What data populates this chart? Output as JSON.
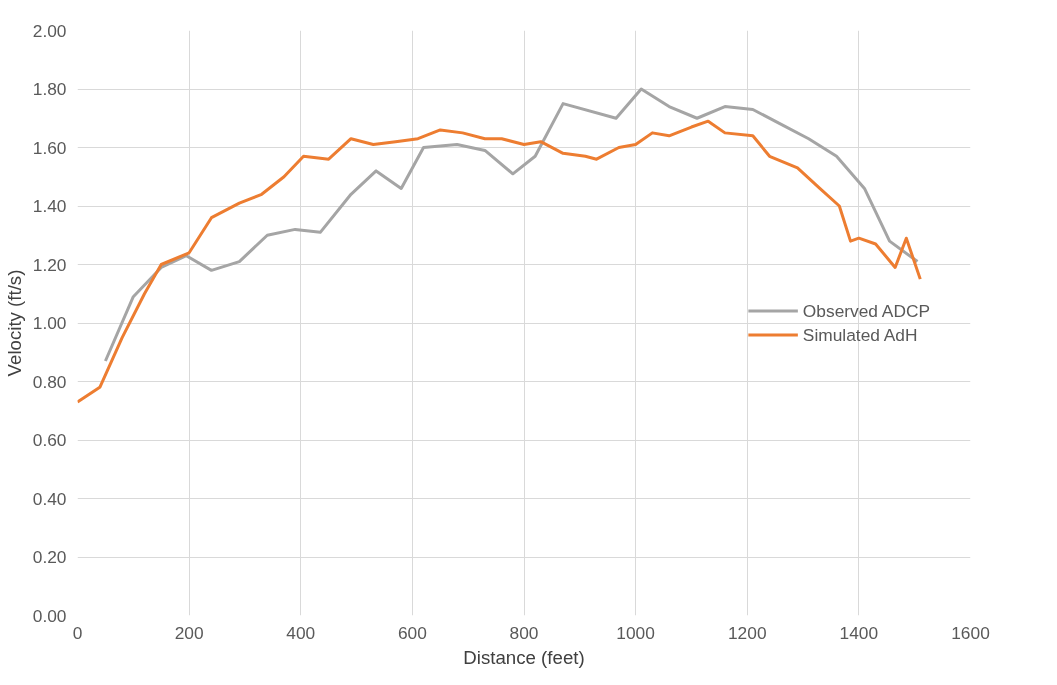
{
  "chart_data": {
    "type": "line",
    "xlabel": "Distance (feet)",
    "ylabel": "Velocity (ft/s)",
    "xlim": [
      0,
      1600
    ],
    "xticks": [
      0,
      200,
      400,
      600,
      800,
      1000,
      1200,
      1400,
      1600
    ],
    "ylim": [
      0,
      2
    ],
    "yticks": [
      {
        "value": 0,
        "label": "0.00"
      },
      {
        "value": 0.2,
        "label": "0.20"
      },
      {
        "value": 0.4,
        "label": "0.40"
      },
      {
        "value": 0.6,
        "label": "0.60"
      },
      {
        "value": 0.8,
        "label": "0.80"
      },
      {
        "value": 1,
        "label": "1.00"
      },
      {
        "value": 1.2,
        "label": "1.20"
      },
      {
        "value": 1.4,
        "label": "1.40"
      },
      {
        "value": 1.6,
        "label": "1.60"
      },
      {
        "value": 1.8,
        "label": "1.80"
      },
      {
        "value": 2,
        "label": "2.00"
      }
    ],
    "grid": true,
    "legend": "right",
    "marker": "none",
    "line_style": "solid",
    "series": [
      {
        "name": "Observed ADCP",
        "color": "#a5a5a5",
        "x": [
          50,
          100,
          150,
          195,
          240,
          290,
          340,
          390,
          435,
          490,
          535,
          580,
          620,
          680,
          730,
          780,
          820,
          870,
          965,
          1010,
          1060,
          1110,
          1160,
          1210,
          1260,
          1310,
          1360,
          1410,
          1455,
          1505
        ],
        "values": [
          0.87,
          1.09,
          1.19,
          1.23,
          1.18,
          1.21,
          1.3,
          1.32,
          1.31,
          1.44,
          1.52,
          1.46,
          1.6,
          1.61,
          1.59,
          1.51,
          1.57,
          1.75,
          1.7,
          1.8,
          1.74,
          1.7,
          1.74,
          1.73,
          1.68,
          1.63,
          1.57,
          1.46,
          1.28,
          1.21
        ]
      },
      {
        "name": "Simulated AdH",
        "color": "#ed7d31",
        "x": [
          0,
          40,
          80,
          120,
          150,
          200,
          240,
          290,
          330,
          370,
          405,
          450,
          490,
          530,
          570,
          610,
          650,
          690,
          730,
          760,
          800,
          830,
          870,
          910,
          930,
          970,
          1000,
          1030,
          1060,
          1100,
          1130,
          1160,
          1210,
          1240,
          1290,
          1330,
          1365,
          1385,
          1400,
          1430,
          1465,
          1485,
          1510
        ],
        "values": [
          0.73,
          0.78,
          0.95,
          1.1,
          1.2,
          1.24,
          1.36,
          1.41,
          1.44,
          1.5,
          1.57,
          1.56,
          1.63,
          1.61,
          1.62,
          1.63,
          1.66,
          1.65,
          1.63,
          1.63,
          1.61,
          1.62,
          1.58,
          1.57,
          1.56,
          1.6,
          1.61,
          1.65,
          1.64,
          1.67,
          1.69,
          1.65,
          1.64,
          1.57,
          1.53,
          1.46,
          1.4,
          1.28,
          1.29,
          1.27,
          1.19,
          1.29,
          1.15
        ]
      }
    ]
  }
}
